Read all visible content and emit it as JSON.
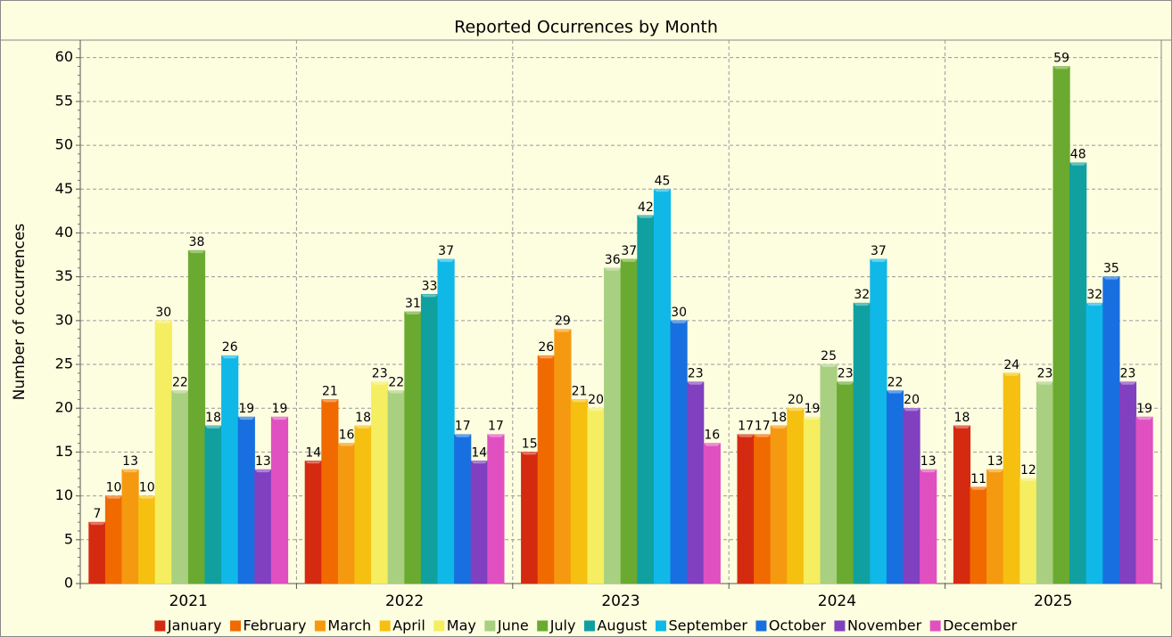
{
  "chart_data": {
    "type": "bar",
    "title": "Reported Ocurrences by Month",
    "y_label": "Number of occurrences",
    "categories": [
      "2021",
      "2022",
      "2023",
      "2024",
      "2025"
    ],
    "series": [
      {
        "name": "January",
        "color": "#d42a10",
        "values": [
          7,
          14,
          15,
          17,
          18
        ]
      },
      {
        "name": "February",
        "color": "#f06a00",
        "values": [
          10,
          21,
          26,
          17,
          11
        ]
      },
      {
        "name": "March",
        "color": "#f59a10",
        "values": [
          13,
          16,
          29,
          18,
          13
        ]
      },
      {
        "name": "April",
        "color": "#f5c010",
        "values": [
          10,
          18,
          21,
          20,
          24
        ]
      },
      {
        "name": "May",
        "color": "#f5ee60",
        "values": [
          30,
          23,
          20,
          19,
          12
        ]
      },
      {
        "name": "June",
        "color": "#a8d080",
        "values": [
          22,
          22,
          36,
          25,
          23
        ]
      },
      {
        "name": "July",
        "color": "#6aaa30",
        "values": [
          38,
          31,
          37,
          23,
          59
        ]
      },
      {
        "name": "August",
        "color": "#10a0a0",
        "values": [
          18,
          33,
          42,
          32,
          48
        ]
      },
      {
        "name": "September",
        "color": "#10b8e8",
        "values": [
          26,
          37,
          45,
          37,
          32
        ]
      },
      {
        "name": "October",
        "color": "#1870e0",
        "values": [
          19,
          17,
          30,
          22,
          35
        ]
      },
      {
        "name": "November",
        "color": "#8040c0",
        "values": [
          13,
          14,
          23,
          20,
          23
        ]
      },
      {
        "name": "December",
        "color": "#e050c0",
        "values": [
          19,
          17,
          16,
          13,
          19
        ]
      }
    ],
    "ylim": [
      0,
      62
    ],
    "yticks": [
      0,
      5,
      10,
      15,
      20,
      25,
      30,
      35,
      40,
      45,
      50,
      55,
      60
    ],
    "grid": true,
    "legend": "bottom"
  }
}
